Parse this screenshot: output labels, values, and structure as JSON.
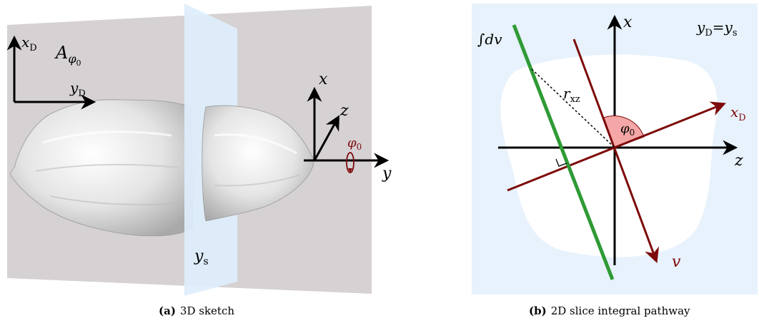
{
  "panel_a": {
    "detector_label": "A",
    "detector_sub": "φ",
    "detector_subsub": "0",
    "xD_main": "x",
    "xD_sub": "D",
    "yD_main": "y",
    "yD_sub": "D",
    "x_label": "x",
    "y_label": "y",
    "z_label": "z",
    "phi_main": "φ",
    "phi_sub": "0",
    "ys_main": "y",
    "ys_sub": "s",
    "caption_tag": "(a)",
    "caption_text": "3D sketch"
  },
  "panel_b": {
    "integral_label": "∫dv",
    "x_label": "x",
    "z_label": "z",
    "eq_lhs_main": "y",
    "eq_lhs_sub": "D",
    "eq_op": "=",
    "eq_rhs_main": "y",
    "eq_rhs_sub": "s",
    "r_main": "r",
    "r_sub": "xz",
    "phi_main": "φ",
    "phi_sub": "0",
    "xD_main": "x",
    "xD_sub": "D",
    "v_label": "v",
    "caption_tag": "(b)",
    "caption_text": "2D slice integral pathway"
  },
  "colors": {
    "detector_plane": "#d6d1d3",
    "slice_plane": "#ddeefb",
    "panel_bg": "#e7f2fc",
    "dark_red": "#7d0a0a",
    "green": "#2f9a35",
    "angle_fill": "#f5a6a6"
  }
}
